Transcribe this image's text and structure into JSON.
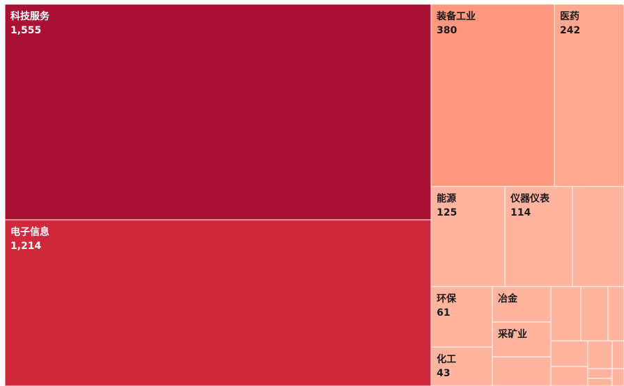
{
  "chart_data": {
    "type": "treemap",
    "nodes": [
      {
        "id": "n1",
        "label": "科技服务",
        "value": 1555,
        "value_text": "1,555",
        "color": "#A91235",
        "text_color": "#ffffff"
      },
      {
        "id": "n2",
        "label": "电子信息",
        "value": 1214,
        "value_text": "1,214",
        "color": "#D0293B",
        "text_color": "#ffffff"
      },
      {
        "id": "n3",
        "label": "装备工业",
        "value": 380,
        "value_text": "380",
        "color": "#FD977E",
        "text_color": "#1a1a1a"
      },
      {
        "id": "n4",
        "label": "医药",
        "value": 242,
        "value_text": "242",
        "color": "#FEA88F",
        "text_color": "#1a1a1a"
      },
      {
        "id": "n5",
        "label": "能源",
        "value": 125,
        "value_text": "125",
        "color": "#FFB4A0",
        "text_color": "#1a1a1a"
      },
      {
        "id": "n6",
        "label": "仪器仪表",
        "value": 114,
        "value_text": "114",
        "color": "#FFB4A0",
        "text_color": "#1a1a1a"
      },
      {
        "id": "n7",
        "label": "",
        "value": null,
        "value_text": "",
        "color": "#FFB4A0",
        "text_color": "#1a1a1a"
      },
      {
        "id": "n8",
        "label": "环保",
        "value": 61,
        "value_text": "61",
        "color": "#FFB4A0",
        "text_color": "#1a1a1a"
      },
      {
        "id": "n9",
        "label": "冶金",
        "value": null,
        "value_text": "",
        "color": "#FFB4A0",
        "text_color": "#1a1a1a"
      },
      {
        "id": "n10",
        "label": "采矿业",
        "value": null,
        "value_text": "",
        "color": "#FFB4A0",
        "text_color": "#1a1a1a"
      },
      {
        "id": "n11",
        "label": "化工",
        "value": 43,
        "value_text": "43",
        "color": "#FFB4A0",
        "text_color": "#1a1a1a"
      },
      {
        "id": "n12",
        "label": "",
        "value": null,
        "value_text": "",
        "color": "#FFB4A0",
        "text_color": "#1a1a1a"
      },
      {
        "id": "n13",
        "label": "",
        "value": null,
        "value_text": "",
        "color": "#FFB4A0",
        "text_color": "#1a1a1a"
      },
      {
        "id": "n14",
        "label": "",
        "value": null,
        "value_text": "",
        "color": "#FFB4A0",
        "text_color": "#1a1a1a"
      },
      {
        "id": "n15",
        "label": "",
        "value": null,
        "value_text": "",
        "color": "#FFB4A0",
        "text_color": "#1a1a1a"
      },
      {
        "id": "n16",
        "label": "",
        "value": null,
        "value_text": "",
        "color": "#FFB4A0",
        "text_color": "#1a1a1a"
      },
      {
        "id": "n17",
        "label": "",
        "value": null,
        "value_text": "",
        "color": "#FFB4A0",
        "text_color": "#1a1a1a"
      },
      {
        "id": "n18",
        "label": "",
        "value": null,
        "value_text": "",
        "color": "#FFB4A0",
        "text_color": "#1a1a1a"
      },
      {
        "id": "n19",
        "label": "",
        "value": null,
        "value_text": "",
        "color": "#FFB4A0",
        "text_color": "#1a1a1a"
      },
      {
        "id": "n20",
        "label": "",
        "value": null,
        "value_text": "",
        "color": "#FFB4A0",
        "text_color": "#1a1a1a"
      },
      {
        "id": "n21",
        "label": "",
        "value": null,
        "value_text": "",
        "color": "#FFB4A0",
        "text_color": "#1a1a1a"
      },
      {
        "id": "n22",
        "label": "",
        "value": null,
        "value_text": "",
        "color": "#FFB4A0",
        "text_color": "#1a1a1a"
      }
    ]
  }
}
